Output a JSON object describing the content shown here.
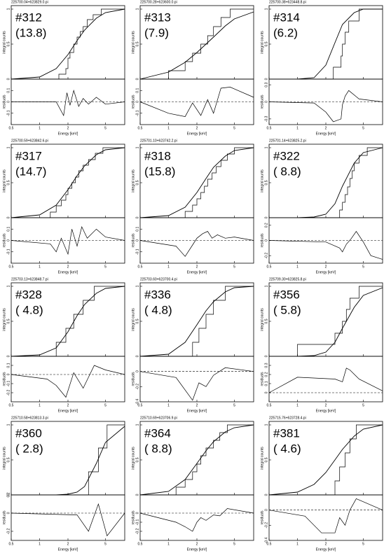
{
  "chart_data": [
    {
      "type": "step",
      "title": "225700.04+623829.0.pi",
      "label": "#312",
      "counts": "(13.8)",
      "xlabel": "Energy [keV]",
      "ylabel": "integral counts",
      "residual_ylabel": "residuals",
      "xlim": [
        0.5,
        8
      ],
      "xticks": [
        0.5,
        1,
        2,
        5
      ],
      "ylim": [
        0,
        1.05
      ],
      "yticks": [
        0,
        0.5,
        1
      ],
      "residual_ylim": [
        -0.2,
        0.2
      ],
      "residual_yticks": [
        -0.1,
        0,
        0.1
      ],
      "model_x": [
        0.5,
        1,
        1.5,
        2,
        2.5,
        3,
        4,
        5,
        8
      ],
      "model_y": [
        0,
        0.03,
        0.15,
        0.35,
        0.55,
        0.7,
        0.87,
        0.95,
        1
      ],
      "step_x": [
        1.6,
        1.9,
        2.0,
        2.1,
        2.3,
        2.5,
        2.7,
        2.9,
        3.2,
        3.7,
        4.5
      ],
      "step_y": [
        0.07,
        0.15,
        0.3,
        0.38,
        0.5,
        0.6,
        0.68,
        0.75,
        0.85,
        0.92,
        1
      ],
      "residual_x": [
        0.5,
        1.5,
        1.8,
        1.95,
        2.1,
        2.3,
        2.6,
        2.9,
        3.3,
        4,
        5,
        8
      ],
      "residual_y": [
        0,
        0,
        -0.12,
        0.08,
        -0.03,
        0.1,
        -0.04,
        0.03,
        -0.02,
        0.04,
        -0.02,
        0
      ]
    },
    {
      "type": "step",
      "title": "225700.28+623600.0.pi",
      "label": "#313",
      "counts": "(7.9)",
      "xlabel": "Energy [keV]",
      "ylabel": "integral counts",
      "residual_ylabel": "residuals",
      "xlim": [
        0.5,
        8
      ],
      "xticks": [
        0.5,
        1,
        2,
        5
      ],
      "ylim": [
        0,
        1.05
      ],
      "yticks": [
        0,
        0.5,
        1
      ],
      "residual_ylim": [
        -0.2,
        0.2
      ],
      "residual_yticks": [
        -0.1,
        0,
        0.1
      ],
      "model_x": [
        0.5,
        1,
        1.5,
        2,
        2.5,
        3,
        4,
        5,
        8
      ],
      "model_y": [
        0,
        0.1,
        0.24,
        0.38,
        0.5,
        0.6,
        0.76,
        0.86,
        0.96
      ],
      "step_x": [
        1.0,
        1.5,
        1.8,
        2.2,
        2.6,
        3.0,
        3.6,
        4.5
      ],
      "step_y": [
        0.12,
        0.25,
        0.37,
        0.5,
        0.62,
        0.75,
        0.88,
        1
      ],
      "residual_x": [
        0.5,
        1,
        1.5,
        1.8,
        2.2,
        2.6,
        3,
        3.6,
        4.5,
        8
      ],
      "residual_y": [
        0,
        -0.1,
        -0.13,
        -0.01,
        -0.12,
        0.02,
        -0.1,
        0.12,
        0.13,
        0.04
      ]
    },
    {
      "type": "step",
      "title": "225700.38+623448.8.pi",
      "label": "#314",
      "counts": "(6.2)",
      "xlabel": "Energy [keV]",
      "ylabel": "integral counts",
      "residual_ylabel": "residuals",
      "xlim": [
        0.5,
        8
      ],
      "xticks": [
        0.5,
        1,
        2,
        5
      ],
      "ylim": [
        0,
        1.05
      ],
      "yticks": [
        0,
        0.5,
        1
      ],
      "residual_ylim": [
        -0.4,
        0.4
      ],
      "residual_yticks": [
        -0.3,
        0,
        0.3
      ],
      "model_x": [
        0.5,
        1,
        1.5,
        2,
        2.5,
        3,
        4,
        5,
        8
      ],
      "model_y": [
        0,
        0,
        0.02,
        0.2,
        0.52,
        0.78,
        0.95,
        1,
        1
      ],
      "step_x": [
        2.4,
        2.9,
        3.0,
        3.2,
        3.5,
        4.5
      ],
      "step_y": [
        0.17,
        0.33,
        0.5,
        0.67,
        0.83,
        1
      ],
      "residual_x": [
        0.5,
        1.5,
        2,
        2.4,
        2.9,
        3.0,
        3.2,
        3.5,
        4.5,
        8
      ],
      "residual_y": [
        0,
        -0.02,
        -0.18,
        -0.35,
        -0.3,
        -0.05,
        0.1,
        0.2,
        0.05,
        0
      ]
    },
    {
      "type": "step",
      "title": "225700.59+623842.6.pi",
      "label": "#317",
      "counts": "(14.7)",
      "xlabel": "Energy [keV]",
      "ylabel": "integral counts",
      "residual_ylabel": "residuals",
      "xlim": [
        0.5,
        8
      ],
      "xticks": [
        0.5,
        1,
        2,
        5
      ],
      "ylim": [
        0,
        1.05
      ],
      "yticks": [
        0,
        0.5,
        1
      ],
      "residual_ylim": [
        -0.2,
        0.2
      ],
      "residual_yticks": [
        -0.1,
        0,
        0.1
      ],
      "model_x": [
        0.5,
        1,
        1.5,
        2,
        2.5,
        3,
        4,
        5,
        8
      ],
      "model_y": [
        0,
        0.04,
        0.18,
        0.4,
        0.6,
        0.74,
        0.9,
        0.97,
        1
      ],
      "step_x": [
        1.3,
        1.5,
        1.7,
        1.9,
        2.0,
        2.2,
        2.4,
        2.6,
        2.9,
        3.3,
        3.9,
        4.7
      ],
      "step_y": [
        0.08,
        0.17,
        0.25,
        0.33,
        0.42,
        0.5,
        0.58,
        0.67,
        0.75,
        0.83,
        0.92,
        1
      ],
      "residual_x": [
        0.5,
        1.3,
        1.5,
        1.7,
        2.0,
        2.2,
        2.5,
        2.8,
        3.2,
        4,
        5,
        8
      ],
      "residual_y": [
        0,
        -0.03,
        -0.1,
        0.02,
        -0.12,
        0.1,
        -0.05,
        0.12,
        0.02,
        0.1,
        0.03,
        0
      ]
    },
    {
      "type": "step",
      "title": "225701.10+623742.2.pi",
      "label": "#318",
      "counts": "(15.8)",
      "xlabel": "Energy [keV]",
      "ylabel": "integral counts",
      "residual_ylabel": "residuals",
      "xlim": [
        0.5,
        8
      ],
      "xticks": [
        0.5,
        1,
        2,
        5
      ],
      "ylim": [
        0,
        1.05
      ],
      "yticks": [
        0,
        0.5,
        1
      ],
      "residual_ylim": [
        -0.2,
        0.2
      ],
      "residual_yticks": [
        -0.1,
        0,
        0.1
      ],
      "model_x": [
        0.5,
        1,
        1.5,
        2,
        2.5,
        3,
        4,
        5,
        8
      ],
      "model_y": [
        0,
        0.03,
        0.15,
        0.36,
        0.56,
        0.72,
        0.88,
        0.96,
        1
      ],
      "step_x": [
        1.5,
        1.8,
        2.0,
        2.2,
        2.4,
        2.6,
        2.9,
        3.2,
        3.6,
        4.2,
        5
      ],
      "step_y": [
        0.09,
        0.18,
        0.27,
        0.36,
        0.45,
        0.55,
        0.64,
        0.73,
        0.82,
        0.91,
        1
      ],
      "residual_x": [
        0.5,
        1.2,
        1.5,
        1.8,
        2.0,
        2.3,
        2.6,
        2.9,
        3.3,
        4,
        5,
        8
      ],
      "residual_y": [
        0,
        -0.05,
        -0.14,
        -0.04,
        0.02,
        0.06,
        0.08,
        0.02,
        0.05,
        0.02,
        0.03,
        0
      ]
    },
    {
      "type": "step",
      "title": "225701.14+623825.2.pi",
      "label": "#322",
      "counts": "( 8.8)",
      "xlabel": "Energy [keV]",
      "ylabel": "integral counts",
      "residual_ylabel": "residuals",
      "xlim": [
        0.5,
        8
      ],
      "xticks": [
        0.5,
        1,
        2,
        5
      ],
      "ylim": [
        0,
        1.05
      ],
      "yticks": [
        0,
        0.5,
        1
      ],
      "residual_ylim": [
        -0.3,
        0.3
      ],
      "residual_yticks": [
        -0.2,
        0,
        0.2
      ],
      "model_x": [
        0.5,
        1,
        1.5,
        2,
        2.5,
        3,
        4,
        5,
        8
      ],
      "model_y": [
        0,
        0,
        0.01,
        0.05,
        0.2,
        0.45,
        0.78,
        0.93,
        1
      ],
      "step_x": [
        2.8,
        3.0,
        3.2,
        3.4,
        3.6,
        3.8,
        4.0,
        4.5,
        5.5
      ],
      "step_y": [
        0.11,
        0.22,
        0.33,
        0.44,
        0.56,
        0.67,
        0.78,
        0.89,
        1
      ],
      "residual_x": [
        0.5,
        2,
        2.8,
        3.0,
        3.3,
        3.7,
        4.2,
        5,
        6,
        8
      ],
      "residual_y": [
        0,
        -0.02,
        -0.1,
        -0.15,
        -0.05,
        0.02,
        0.12,
        -0.02,
        -0.2,
        -0.25
      ]
    },
    {
      "type": "step",
      "title": "225703.13+623848.7.pi",
      "label": "#328",
      "counts": "( 4.8)",
      "xlabel": "Energy [keV]",
      "ylabel": "integral counts",
      "residual_ylabel": "residuals",
      "xlim": [
        0.5,
        8
      ],
      "xticks": [
        0.5,
        1,
        2,
        5
      ],
      "ylim": [
        0,
        1.05
      ],
      "yticks": [
        0,
        0.5,
        1
      ],
      "residual_ylim": [
        -0.3,
        0.2
      ],
      "residual_yticks": [
        -0.2,
        -0.1,
        0,
        0.1
      ],
      "model_x": [
        0.5,
        1,
        1.5,
        2,
        2.5,
        3,
        4,
        5,
        8
      ],
      "model_y": [
        0,
        0.02,
        0.12,
        0.35,
        0.58,
        0.74,
        0.9,
        0.97,
        1
      ],
      "step_x": [
        1.5,
        1.9,
        2.3,
        2.9,
        3.8,
        8
      ],
      "step_y": [
        0.2,
        0.4,
        0.6,
        0.8,
        1,
        1
      ],
      "residual_x": [
        0.5,
        1.2,
        1.5,
        1.9,
        2.3,
        2.9,
        3.8,
        5,
        8
      ],
      "residual_y": [
        0,
        -0.05,
        -0.12,
        -0.25,
        0.02,
        -0.15,
        0.1,
        0.05,
        0
      ]
    },
    {
      "type": "step",
      "title": "225703.60+623700.4.pi",
      "label": "#336",
      "counts": "( 4.8)",
      "xlabel": "Energy [keV]",
      "ylabel": "integral counts",
      "residual_ylabel": "residuals",
      "xlim": [
        0.5,
        8
      ],
      "xticks": [
        0.5,
        1,
        2,
        5
      ],
      "ylim": [
        0,
        1.05
      ],
      "yticks": [
        0,
        0.5,
        1
      ],
      "residual_ylim": [
        -0.4,
        0.2
      ],
      "residual_yticks": [
        -0.4,
        -0.2,
        0
      ],
      "model_x": [
        0.5,
        1,
        1.5,
        2,
        2.5,
        3,
        4,
        5,
        8
      ],
      "model_y": [
        0,
        0.03,
        0.2,
        0.45,
        0.65,
        0.78,
        0.92,
        0.98,
        1
      ],
      "step_x": [
        1.8,
        2.1,
        2.5,
        3.0,
        4.0
      ],
      "step_y": [
        0.2,
        0.4,
        0.6,
        0.8,
        1
      ],
      "residual_x": [
        0.5,
        1.2,
        1.8,
        2.1,
        2.5,
        3.0,
        4.0,
        8
      ],
      "residual_y": [
        0,
        -0.08,
        -0.38,
        -0.15,
        -0.2,
        -0.05,
        0.05,
        0
      ]
    },
    {
      "type": "step",
      "title": "225709.30+623825.8.pi",
      "label": "#356",
      "counts": "( 5.8)",
      "xlabel": "Energy [keV]",
      "ylabel": "integral counts",
      "residual_ylabel": "residuals",
      "xlim": [
        0.5,
        8
      ],
      "xticks": [
        0.5,
        1,
        2,
        5
      ],
      "ylim": [
        0,
        1.05
      ],
      "yticks": [
        0,
        0.5,
        1
      ],
      "residual_ylim": [
        -0.1,
        0.4
      ],
      "residual_yticks": [
        0,
        0.1,
        0.2,
        0.3
      ],
      "model_x": [
        0.5,
        1,
        1.5,
        2,
        2.5,
        3,
        4,
        5,
        8
      ],
      "model_y": [
        0,
        0,
        0.01,
        0.06,
        0.2,
        0.4,
        0.7,
        0.87,
        0.98
      ],
      "step_x": [
        1.0,
        2.5,
        3.0,
        3.3,
        3.6,
        4.5
      ],
      "step_y": [
        0.17,
        0.33,
        0.5,
        0.67,
        0.83,
        1
      ],
      "residual_x": [
        0.5,
        1.0,
        2.5,
        3.0,
        3.3,
        3.6,
        4.5,
        8
      ],
      "residual_y": [
        0,
        0.17,
        0.15,
        0.12,
        0.27,
        0.25,
        0.15,
        0.02
      ]
    },
    {
      "type": "step",
      "title": "225710.58+623813.3.pi",
      "label": "#360",
      "counts": "( 2.8)",
      "xlabel": "Energy [keV]",
      "ylabel": "integral counts",
      "residual_ylabel": "residuals",
      "xlim": [
        0.5,
        8
      ],
      "xticks": [
        0.5,
        1,
        2,
        5
      ],
      "ylim": [
        0,
        1.05
      ],
      "yticks": [
        0,
        0.5,
        1
      ],
      "residual_ylim": [
        -0.3,
        0.2
      ],
      "residual_yticks": [
        -0.2,
        0,
        0.2
      ],
      "model_x": [
        0.5,
        1,
        1.5,
        2,
        2.5,
        3,
        4,
        5,
        8
      ],
      "model_y": [
        0,
        0,
        0,
        0.01,
        0.04,
        0.12,
        0.45,
        0.75,
        0.98
      ],
      "step_x": [
        3.3,
        4.2,
        5.2
      ],
      "step_y": [
        0.33,
        0.67,
        1
      ],
      "residual_x": [
        0.5,
        2.5,
        3.3,
        4.2,
        5.2,
        8
      ],
      "residual_y": [
        0,
        -0.02,
        -0.2,
        0.1,
        -0.25,
        0
      ]
    },
    {
      "type": "step",
      "title": "225710.69+623706.9.pi",
      "label": "#364",
      "counts": "( 8.8)",
      "xlabel": "Energy [keV]",
      "ylabel": "integral counts",
      "residual_ylabel": "residuals",
      "xlim": [
        0.5,
        8
      ],
      "xticks": [
        0.5,
        1,
        2,
        5
      ],
      "ylim": [
        0,
        1.05
      ],
      "yticks": [
        0,
        0.5,
        1
      ],
      "residual_ylim": [
        -0.3,
        0.2
      ],
      "residual_yticks": [
        -0.2,
        -0.1,
        0
      ],
      "model_x": [
        0.5,
        1,
        1.5,
        2,
        2.5,
        3,
        4,
        5,
        8
      ],
      "model_y": [
        0,
        0.05,
        0.22,
        0.45,
        0.63,
        0.76,
        0.9,
        0.96,
        1
      ],
      "step_x": [
        1.2,
        1.5,
        1.8,
        2.0,
        2.2,
        2.5,
        3.0,
        3.5,
        4.2
      ],
      "step_y": [
        0.11,
        0.22,
        0.33,
        0.44,
        0.56,
        0.67,
        0.78,
        0.89,
        1
      ],
      "residual_x": [
        0.5,
        1.2,
        1.5,
        1.8,
        2.0,
        2.2,
        2.5,
        3.0,
        3.5,
        4.2,
        8
      ],
      "residual_y": [
        0,
        -0.1,
        -0.15,
        -0.2,
        -0.1,
        -0.05,
        -0.08,
        -0.02,
        -0.03,
        0.05,
        0
      ]
    },
    {
      "type": "step",
      "title": "225715.76+623728.4.pi",
      "label": "#381",
      "counts": "( 4.6)",
      "xlabel": "Energy [keV]",
      "ylabel": "integral counts",
      "residual_ylabel": "residuals",
      "xlim": [
        0.5,
        8
      ],
      "xticks": [
        0.5,
        1,
        2,
        5
      ],
      "ylim": [
        0,
        1.05
      ],
      "yticks": [
        0,
        0.5,
        1
      ],
      "residual_ylim": [
        -0.4,
        0.2
      ],
      "residual_yticks": [
        -0.4,
        -0.2,
        0
      ],
      "model_x": [
        0.5,
        1,
        1.5,
        2,
        2.5,
        3,
        4,
        5,
        8
      ],
      "model_y": [
        0,
        0.04,
        0.15,
        0.32,
        0.5,
        0.65,
        0.84,
        0.94,
        1
      ],
      "step_x": [
        2.5,
        2.8,
        3.2,
        3.6,
        4.2
      ],
      "step_y": [
        0.2,
        0.4,
        0.6,
        0.8,
        1
      ],
      "residual_x": [
        0.5,
        1.2,
        1.8,
        2.5,
        2.8,
        3.2,
        3.6,
        4.2,
        8
      ],
      "residual_y": [
        0,
        -0.08,
        -0.3,
        -0.3,
        -0.1,
        -0.2,
        0.0,
        0.15,
        0
      ]
    }
  ]
}
